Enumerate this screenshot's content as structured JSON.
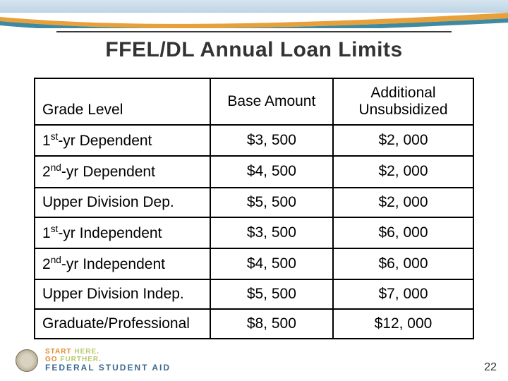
{
  "title": "FFEL/DL Annual Loan Limits",
  "pageNumber": "22",
  "logo": {
    "line1a": "START",
    "line1b": "HERE",
    "line2a": "GO",
    "line2b": "FURTHER",
    "brand": "FEDERAL STUDENT AID"
  },
  "table": {
    "headers": {
      "gradeLevel": "Grade Level",
      "base": "Base Amount",
      "additional": "Additional Unsubsidized"
    },
    "rows": [
      {
        "label_pre": "1",
        "label_sup": "st",
        "label_post": "-yr Dependent",
        "base": "$3, 500",
        "add": "$2, 000"
      },
      {
        "label_pre": "2",
        "label_sup": "nd",
        "label_post": "-yr Dependent",
        "base": "$4, 500",
        "add": "$2, 000"
      },
      {
        "label_pre": "",
        "label_sup": "",
        "label_post": "Upper Division Dep.",
        "base": "$5, 500",
        "add": "$2, 000"
      },
      {
        "label_pre": "1",
        "label_sup": "st",
        "label_post": "-yr Independent",
        "base": "$3, 500",
        "add": "$6, 000"
      },
      {
        "label_pre": "2",
        "label_sup": "nd",
        "label_post": "-yr Independent",
        "base": "$4, 500",
        "add": "$6, 000"
      },
      {
        "label_pre": "",
        "label_sup": "",
        "label_post": "Upper Division Indep.",
        "base": "$5, 500",
        "add": "$7, 000"
      },
      {
        "label_pre": "",
        "label_sup": "",
        "label_post": "Graduate/Professional",
        "base": "$8, 500",
        "add": "$12, 000"
      }
    ]
  },
  "style": {
    "colors": {
      "swoosh_orange": "#e8a13a",
      "swoosh_teal": "#3f8aa0",
      "title_color": "#333333",
      "border_color": "#000000",
      "band_top": "#d6e4ee",
      "band_bottom": "#bcd3e6"
    },
    "fonts": {
      "title_pt": 30,
      "cell_pt": 21,
      "pagenum_pt": 16
    },
    "column_widths_pct": [
      40,
      28,
      32
    ]
  }
}
